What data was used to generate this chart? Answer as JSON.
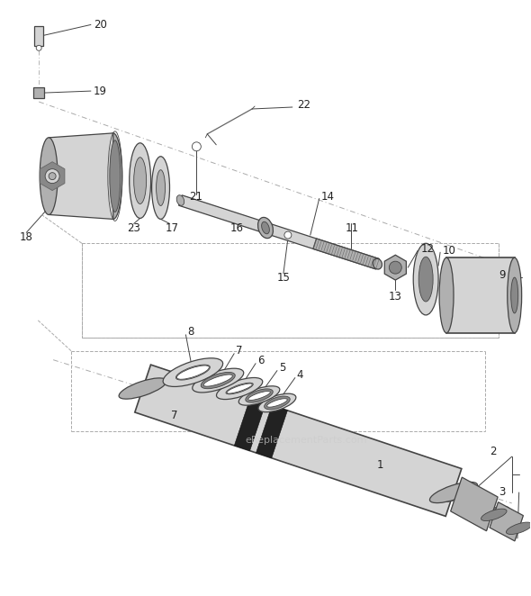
{
  "bg_color": "#ffffff",
  "line_color": "#444444",
  "label_color": "#222222",
  "watermark": "eReplacementParts.com",
  "watermark_color": "#cccccc",
  "fig_width": 5.9,
  "fig_height": 6.62,
  "dpi": 100,
  "gray_light": "#d4d4d4",
  "gray_mid": "#b0b0b0",
  "gray_dark": "#888888",
  "gray_darker": "#666666",
  "black": "#111111"
}
